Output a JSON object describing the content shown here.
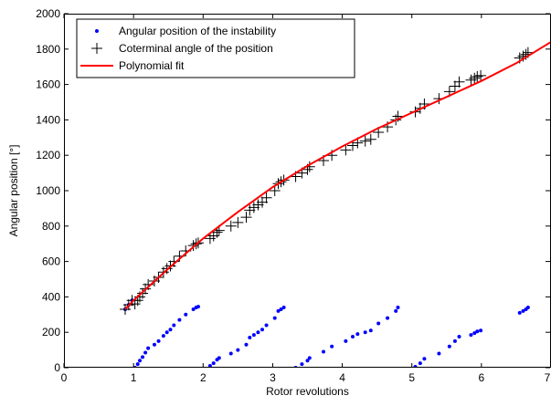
{
  "chart_data": {
    "type": "scatter",
    "title": "",
    "xlabel": "Rotor revolutions",
    "ylabel": "Angular position [°]",
    "xlim": [
      0,
      7
    ],
    "ylim": [
      0,
      2000
    ],
    "xticks": [
      0,
      1,
      2,
      3,
      4,
      5,
      6,
      7
    ],
    "yticks": [
      0,
      200,
      400,
      600,
      800,
      1000,
      1200,
      1400,
      1600,
      1800,
      2000
    ],
    "grid": false,
    "legend_position": "top-left",
    "series": [
      {
        "name": "Angular position of the instability",
        "marker": "dot",
        "color": "#0000ff",
        "x": [
          0.88,
          0.93,
          0.98,
          1.02,
          1.06,
          1.09,
          1.13,
          1.17,
          1.21,
          1.3,
          1.36,
          1.43,
          1.48,
          1.53,
          1.58,
          1.66,
          1.75,
          1.86,
          1.9,
          1.93,
          2.1,
          2.15,
          2.2,
          2.23,
          2.4,
          2.5,
          2.62,
          2.67,
          2.73,
          2.79,
          2.85,
          2.91,
          3.03,
          3.08,
          3.12,
          3.16,
          3.33,
          3.42,
          3.5,
          3.53,
          3.73,
          3.85,
          4.05,
          4.15,
          4.22,
          4.33,
          4.41,
          4.52,
          4.65,
          4.77,
          4.8,
          5.05,
          5.12,
          5.18,
          5.39,
          5.54,
          5.62,
          5.68,
          5.85,
          5.9,
          5.94,
          5.99,
          6.55,
          6.6,
          6.64,
          6.67
        ],
        "y": [
          330,
          355,
          380,
          0,
          20,
          40,
          60,
          85,
          110,
          130,
          150,
          180,
          200,
          215,
          240,
          270,
          300,
          330,
          340,
          345,
          10,
          25,
          45,
          55,
          80,
          100,
          130,
          170,
          185,
          200,
          215,
          240,
          280,
          320,
          330,
          340,
          0,
          20,
          40,
          55,
          90,
          120,
          150,
          175,
          190,
          200,
          210,
          250,
          280,
          320,
          340,
          5,
          25,
          50,
          80,
          120,
          150,
          175,
          185,
          195,
          205,
          210,
          310,
          320,
          330,
          340
        ]
      },
      {
        "name": "Coterminal angle of the position",
        "marker": "plus",
        "color": "#000000",
        "x": [
          0.88,
          0.93,
          0.98,
          1.02,
          1.06,
          1.09,
          1.13,
          1.17,
          1.21,
          1.3,
          1.36,
          1.43,
          1.48,
          1.53,
          1.58,
          1.66,
          1.75,
          1.86,
          1.9,
          1.93,
          2.1,
          2.15,
          2.2,
          2.23,
          2.4,
          2.5,
          2.62,
          2.67,
          2.73,
          2.79,
          2.85,
          2.91,
          3.03,
          3.08,
          3.12,
          3.16,
          3.33,
          3.42,
          3.5,
          3.53,
          3.73,
          3.85,
          4.05,
          4.15,
          4.22,
          4.33,
          4.41,
          4.52,
          4.65,
          4.77,
          4.8,
          5.05,
          5.12,
          5.18,
          5.39,
          5.54,
          5.62,
          5.68,
          5.85,
          5.9,
          5.94,
          5.99,
          6.55,
          6.6,
          6.64,
          6.67
        ],
        "y": [
          330,
          355,
          380,
          360,
          380,
          400,
          420,
          445,
          470,
          490,
          510,
          540,
          560,
          575,
          600,
          630,
          660,
          690,
          700,
          705,
          730,
          745,
          765,
          775,
          800,
          820,
          850,
          890,
          905,
          920,
          935,
          960,
          1000,
          1040,
          1050,
          1060,
          1080,
          1100,
          1120,
          1135,
          1170,
          1200,
          1230,
          1255,
          1270,
          1280,
          1290,
          1330,
          1360,
          1400,
          1420,
          1445,
          1465,
          1490,
          1520,
          1560,
          1590,
          1615,
          1625,
          1635,
          1645,
          1650,
          1750,
          1760,
          1770,
          1780
        ]
      },
      {
        "name": "Polynomial fit",
        "marker": "line",
        "color": "#ff0000",
        "x": [
          0.88,
          1.0,
          1.5,
          2.0,
          2.5,
          3.0,
          3.5,
          4.0,
          4.5,
          5.0,
          5.5,
          6.0,
          6.5,
          7.0
        ],
        "y": [
          330,
          380,
          560,
          730,
          880,
          1020,
          1140,
          1250,
          1350,
          1440,
          1530,
          1620,
          1720,
          1840
        ]
      }
    ]
  }
}
